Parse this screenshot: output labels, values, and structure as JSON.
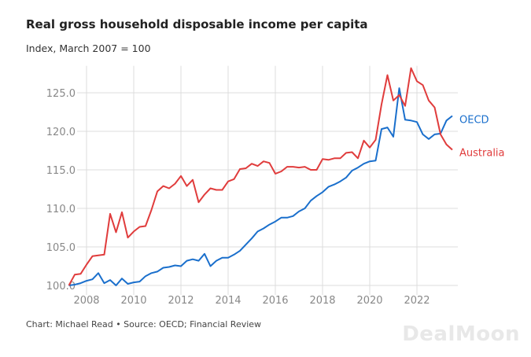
{
  "chart_data": {
    "type": "line",
    "title": "Real gross household disposable income per capita",
    "subtitle": "Index, March 2007 = 100",
    "xlabel": "",
    "ylabel": "",
    "x_start": 2007.25,
    "x_step": 0.25,
    "xlim": [
      2007,
      2024
    ],
    "ylim": [
      100,
      128.5
    ],
    "xticks": [
      2008,
      2010,
      2012,
      2014,
      2016,
      2018,
      2020,
      2022
    ],
    "xtick_labels": [
      "2008",
      "2010",
      "2012",
      "2014",
      "2016",
      "2018",
      "2020",
      "2022"
    ],
    "yticks": [
      100,
      105,
      110,
      115,
      120,
      125
    ],
    "ytick_labels": [
      "100.0",
      "105.0",
      "110.0",
      "115.0",
      "120.0",
      "125.0"
    ],
    "grid": true,
    "legend": "direct labels at right end of lines",
    "series": [
      {
        "name": "OECD",
        "color": "#1a6fcc",
        "values": [
          100,
          100.1,
          100.3,
          100.6,
          100.8,
          101.6,
          100.3,
          100.7,
          100.0,
          100.9,
          100.2,
          100.4,
          100.5,
          101.2,
          101.6,
          101.8,
          102.3,
          102.4,
          102.6,
          102.5,
          103.2,
          103.4,
          103.2,
          104.1,
          102.5,
          103.2,
          103.6,
          103.6,
          104.0,
          104.5,
          105.3,
          106.1,
          107.0,
          107.4,
          107.9,
          108.3,
          108.8,
          108.8,
          109.0,
          109.6,
          110.0,
          111.0,
          111.6,
          112.1,
          112.8,
          113.1,
          113.5,
          114.0,
          114.9,
          115.3,
          115.8,
          116.1,
          116.2,
          120.3,
          120.5,
          119.3,
          125.6,
          121.5,
          121.4,
          121.2,
          119.6,
          119.0,
          119.6,
          119.7,
          121.4,
          122.0
        ]
      },
      {
        "name": "Australia",
        "color": "#e03c3c",
        "values": [
          100,
          101.4,
          101.5,
          102.7,
          103.8,
          103.9,
          104.0,
          109.3,
          106.9,
          109.5,
          106.2,
          107.0,
          107.6,
          107.7,
          109.8,
          112.2,
          112.9,
          112.6,
          113.2,
          114.2,
          112.9,
          113.7,
          110.8,
          111.8,
          112.6,
          112.4,
          112.4,
          113.5,
          113.8,
          115.1,
          115.2,
          115.8,
          115.5,
          116.1,
          115.9,
          114.5,
          114.8,
          115.4,
          115.4,
          115.3,
          115.4,
          115.0,
          115.0,
          116.4,
          116.3,
          116.5,
          116.5,
          117.2,
          117.3,
          116.5,
          118.8,
          117.9,
          118.9,
          123.5,
          127.3,
          124.0,
          124.7,
          123.3,
          128.2,
          126.5,
          126.0,
          124.0,
          123.1,
          119.6,
          118.3,
          117.6
        ]
      }
    ]
  },
  "footer": {
    "source": "Chart: Michael Read • Source: OECD; Financial Review"
  },
  "watermark": "DealMoon"
}
